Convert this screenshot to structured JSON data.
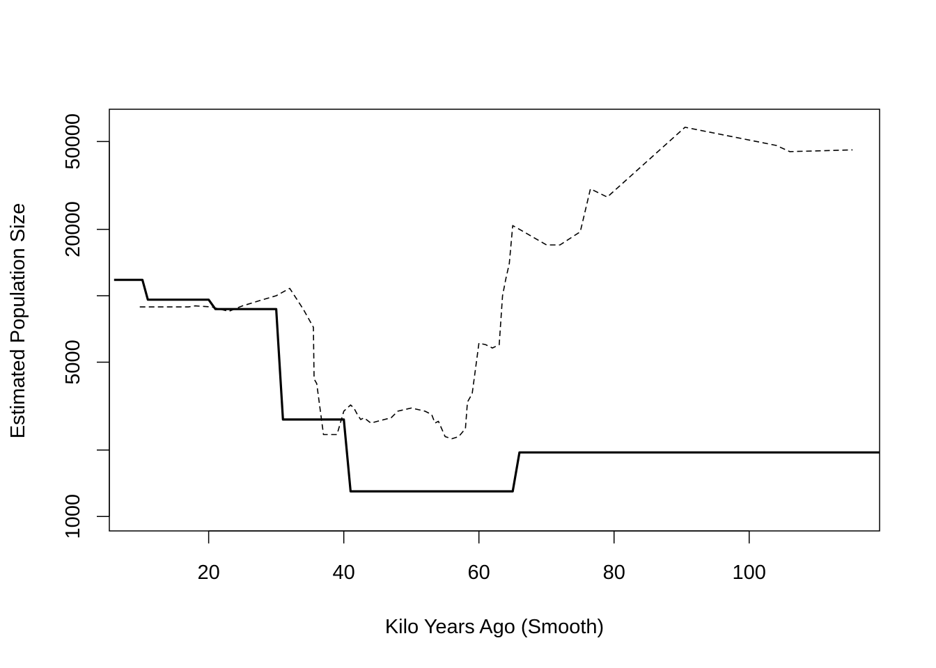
{
  "chart_data": {
    "type": "line",
    "title": "",
    "xlabel": "Kilo Years Ago (Smooth)",
    "ylabel": "Estimated Population Size",
    "xlim": [
      5.3,
      119.3
    ],
    "ylim": [
      860,
      70000
    ],
    "y_scale": "log",
    "grid": false,
    "legend": "none",
    "x_ticks": [
      20,
      40,
      60,
      80,
      100
    ],
    "y_ticks": [
      1000,
      2000,
      5000,
      10000,
      20000,
      50000
    ],
    "y_tick_labels": [
      "1000",
      "",
      "5000",
      "",
      "20000",
      "50000"
    ],
    "colors": {
      "line": "#000000",
      "background": "#ffffff"
    },
    "series": [
      {
        "style": "solid-thick",
        "x": [
          6,
          10.2,
          11,
          20,
          21,
          30,
          31,
          40,
          41,
          65,
          66,
          119.3
        ],
        "y": [
          11800,
          11800,
          9600,
          9600,
          8700,
          8700,
          2750,
          2750,
          1300,
          1300,
          1950,
          1950
        ]
      },
      {
        "style": "dashed",
        "x": [
          9.8,
          17,
          18,
          20.5,
          21,
          23,
          25,
          28,
          30,
          32,
          34,
          35.5,
          35.6,
          36,
          37,
          38,
          39,
          40,
          41,
          41.5,
          42,
          42.5,
          43,
          44,
          45,
          46,
          47,
          48,
          49,
          50,
          51,
          52,
          53,
          53.5,
          54,
          55,
          56,
          57,
          58,
          58.3,
          59,
          60,
          61,
          62,
          63,
          63.5,
          64,
          64.5,
          65,
          66,
          70,
          72,
          75,
          76.5,
          79,
          90.5,
          104,
          106,
          115.3
        ],
        "y": [
          8900,
          8900,
          9000,
          8900,
          8800,
          8500,
          9000,
          9600,
          10000,
          10800,
          8700,
          7200,
          4200,
          4000,
          2350,
          2350,
          2350,
          3000,
          3200,
          3100,
          2900,
          2750,
          2800,
          2650,
          2700,
          2750,
          2800,
          3000,
          3050,
          3100,
          3050,
          3000,
          2900,
          2650,
          2700,
          2300,
          2250,
          2300,
          2500,
          3300,
          3600,
          6100,
          6000,
          5800,
          6000,
          10000,
          12000,
          14000,
          20800,
          20000,
          17000,
          17000,
          19500,
          30500,
          28000,
          58000,
          48000,
          45000,
          45800
        ]
      }
    ]
  }
}
